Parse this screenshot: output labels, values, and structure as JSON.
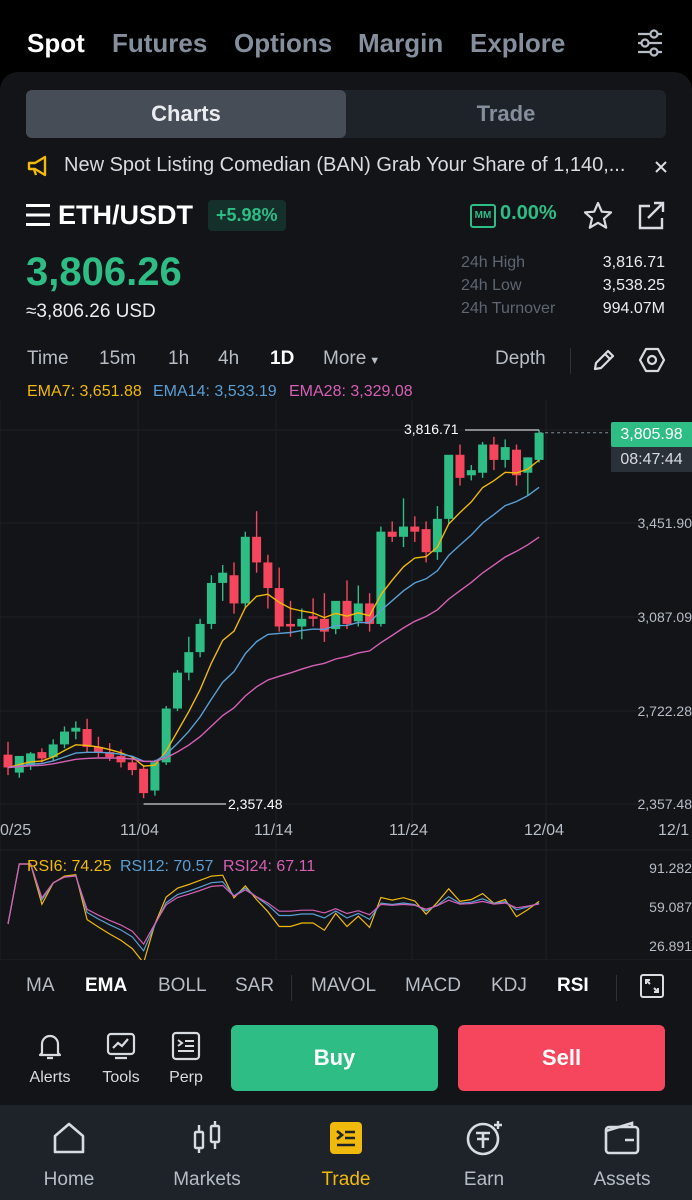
{
  "top_tabs": {
    "spot": "Spot",
    "futures": "Futures",
    "options": "Options",
    "margin": "Margin",
    "explore": "Explore"
  },
  "segment": {
    "charts": "Charts",
    "trade": "Trade"
  },
  "announcement": "New Spot Listing Comedian (BAN)   Grab Your Share of 1,140,...",
  "pair": {
    "name": "ETH/USDT",
    "change": "+5.98%",
    "mm_label": "MM",
    "mm_value": "0.00%"
  },
  "price": {
    "last": "3,806.26",
    "usd": "≈3,806.26 USD"
  },
  "stats": {
    "high_label": "24h High",
    "high": "3,816.71",
    "low_label": "24h Low",
    "low": "3,538.25",
    "turnover_label": "24h Turnover",
    "turnover": "994.07M"
  },
  "timeframes": {
    "time": "Time",
    "m15": "15m",
    "h1": "1h",
    "h4": "4h",
    "d1": "1D",
    "more": "More",
    "depth": "Depth"
  },
  "ema_legend": {
    "ema7": "EMA7: 3,651.88",
    "ema14": "EMA14: 3,533.19",
    "ema28": "EMA28: 3,329.08"
  },
  "chart_labels": {
    "high_marker": "3,816.71",
    "low_marker": "2,357.48",
    "price_tag": "3,805.98",
    "countdown": "08:47:44",
    "y_ticks": [
      "3,451.90",
      "3,087.09",
      "2,722.28",
      "2,357.48"
    ],
    "x_ticks": [
      "0/25",
      "11/04",
      "11/14",
      "11/24",
      "12/04",
      "12/1"
    ]
  },
  "rsi": {
    "rsi6": "RSI6: 74.25",
    "rsi12": "RSI12: 70.57",
    "rsi24": "RSI24: 67.11",
    "y_ticks": [
      "91.282",
      "59.087",
      "26.891"
    ]
  },
  "indicators": {
    "ma": "MA",
    "ema": "EMA",
    "boll": "BOLL",
    "sar": "SAR",
    "mavol": "MAVOL",
    "macd": "MACD",
    "kdj": "KDJ",
    "rsi": "RSI"
  },
  "actions": {
    "alerts": "Alerts",
    "tools": "Tools",
    "perp": "Perp",
    "buy": "Buy",
    "sell": "Sell"
  },
  "nav": {
    "home": "Home",
    "markets": "Markets",
    "trade": "Trade",
    "earn": "Earn",
    "assets": "Assets"
  },
  "colors": {
    "up": "#2ebd85",
    "down": "#f6465d",
    "accent": "#f0b90b",
    "ema7": "#f0b90b",
    "ema14": "#5b9ed4",
    "ema28": "#d660b5"
  },
  "chart_data": {
    "type": "candlestick",
    "y_range": [
      2357.48,
      3816.71
    ],
    "candles": [
      [
        2550,
        2600,
        2500,
        2470
      ],
      [
        2480,
        2530,
        2545,
        2460
      ],
      [
        2510,
        2560,
        2555,
        2490
      ],
      [
        2560,
        2575,
        2535,
        2520
      ],
      [
        2540,
        2610,
        2590,
        2525
      ],
      [
        2590,
        2660,
        2640,
        2575
      ],
      [
        2640,
        2680,
        2655,
        2610
      ],
      [
        2650,
        2690,
        2580,
        2560
      ],
      [
        2580,
        2620,
        2560,
        2540
      ],
      [
        2560,
        2595,
        2540,
        2525
      ],
      [
        2545,
        2570,
        2520,
        2500
      ],
      [
        2520,
        2545,
        2490,
        2470
      ],
      [
        2495,
        2510,
        2400,
        2380
      ],
      [
        2410,
        2530,
        2520,
        2390
      ],
      [
        2520,
        2740,
        2730,
        2510
      ],
      [
        2730,
        2880,
        2870,
        2720
      ],
      [
        2870,
        3010,
        2950,
        2840
      ],
      [
        2950,
        3080,
        3060,
        2930
      ],
      [
        3060,
        3250,
        3220,
        3040
      ],
      [
        3220,
        3290,
        3260,
        3150
      ],
      [
        3250,
        3300,
        3140,
        3100
      ],
      [
        3140,
        3420,
        3400,
        3120
      ],
      [
        3400,
        3500,
        3300,
        3260
      ],
      [
        3300,
        3330,
        3200,
        3120
      ],
      [
        3200,
        3280,
        3050,
        3030
      ],
      [
        3060,
        3150,
        3050,
        3010
      ],
      [
        3050,
        3120,
        3080,
        3000
      ],
      [
        3090,
        3160,
        3080,
        3050
      ],
      [
        3080,
        3180,
        3030,
        2990
      ],
      [
        3040,
        3130,
        3150,
        3020
      ],
      [
        3150,
        3230,
        3060,
        3040
      ],
      [
        3070,
        3210,
        3140,
        3050
      ],
      [
        3140,
        3180,
        3060,
        3030
      ],
      [
        3060,
        3440,
        3420,
        3050
      ],
      [
        3420,
        3460,
        3400,
        3380
      ],
      [
        3400,
        3550,
        3440,
        3360
      ],
      [
        3440,
        3480,
        3420,
        3380
      ],
      [
        3430,
        3460,
        3340,
        3300
      ],
      [
        3340,
        3520,
        3470,
        3310
      ],
      [
        3470,
        3710,
        3720,
        3450
      ],
      [
        3720,
        3760,
        3630,
        3600
      ],
      [
        3640,
        3680,
        3660,
        3620
      ],
      [
        3650,
        3770,
        3760,
        3630
      ],
      [
        3760,
        3790,
        3700,
        3660
      ],
      [
        3700,
        3780,
        3750,
        3670
      ],
      [
        3740,
        3760,
        3640,
        3600
      ],
      [
        3650,
        3690,
        3710,
        3560
      ],
      [
        3700,
        3816.71,
        3806,
        3690
      ]
    ]
  }
}
